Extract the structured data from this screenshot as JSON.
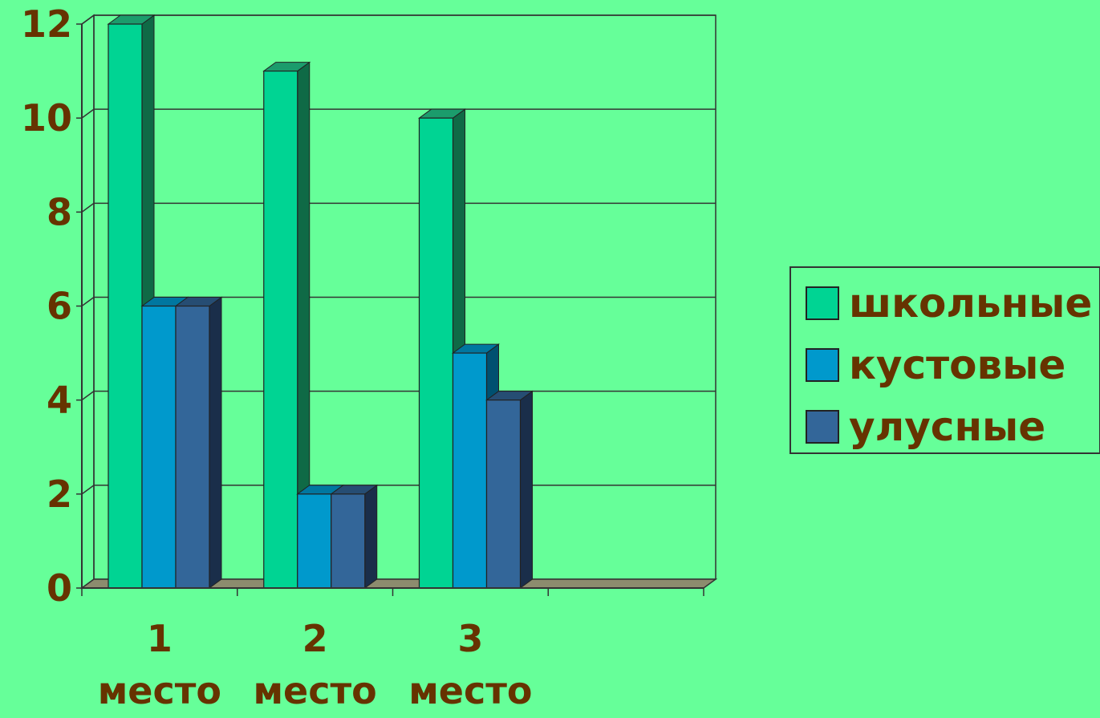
{
  "chart_data": {
    "type": "bar",
    "categories": [
      "1 место",
      "2 место",
      "3 место",
      ""
    ],
    "category_lines": [
      [
        "1",
        "место"
      ],
      [
        "2",
        "место"
      ],
      [
        "3",
        "место"
      ],
      [
        "",
        ""
      ]
    ],
    "series": [
      {
        "name": "школьные",
        "values": [
          12,
          11,
          10,
          0
        ],
        "color": "#00D493",
        "side_color": "#0F6A46",
        "top_color": "#1B9C6C"
      },
      {
        "name": "кустовые",
        "values": [
          6,
          2,
          5,
          0
        ],
        "color": "#0099CC",
        "side_color": "#005070",
        "top_color": "#0077A0"
      },
      {
        "name": "улусные",
        "values": [
          6,
          2,
          4,
          0
        ],
        "color": "#336699",
        "side_color": "#1A2E4A",
        "top_color": "#264D73"
      }
    ],
    "yticks": [
      "0",
      "2",
      "4",
      "6",
      "8",
      "10",
      "12"
    ],
    "ylim": [
      0,
      12
    ],
    "grid": true,
    "legend_position": "right",
    "colors": {
      "background": "#66FF99",
      "text": "#663300",
      "floor": "#8C8C6E",
      "grid": "#333333"
    }
  }
}
